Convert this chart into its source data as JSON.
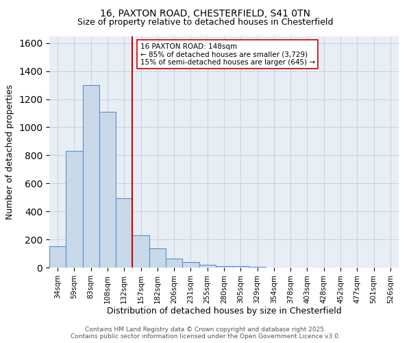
{
  "title_line1": "16, PAXTON ROAD, CHESTERFIELD, S41 0TN",
  "title_line2": "Size of property relative to detached houses in Chesterfield",
  "xlabel": "Distribution of detached houses by size in Chesterfield",
  "ylabel": "Number of detached properties",
  "bar_values": [
    150,
    830,
    1300,
    1110,
    495,
    230,
    135,
    65,
    40,
    22,
    12,
    8,
    5,
    2,
    1,
    1,
    0,
    0,
    0,
    0,
    0
  ],
  "bar_labels": [
    "34sqm",
    "59sqm",
    "83sqm",
    "108sqm",
    "132sqm",
    "157sqm",
    "182sqm",
    "206sqm",
    "231sqm",
    "255sqm",
    "280sqm",
    "305sqm",
    "329sqm",
    "354sqm",
    "378sqm",
    "403sqm",
    "428sqm",
    "452sqm",
    "477sqm",
    "501sqm",
    "526sqm"
  ],
  "bar_color": "#c9d9ea",
  "bar_edge_color": "#5b8fc9",
  "vline_x": 5.0,
  "vline_color": "#cc0000",
  "annotation_text": "16 PAXTON ROAD: 148sqm\n← 85% of detached houses are smaller (3,729)\n15% of semi-detached houses are larger (645) →",
  "annotation_box_color": "#ffffff",
  "annotation_box_edge": "#cc0000",
  "ylim": [
    0,
    1650
  ],
  "yticks": [
    0,
    200,
    400,
    600,
    800,
    1000,
    1200,
    1400,
    1600
  ],
  "grid_color": "#c8d0dc",
  "bg_color": "#e8eef5",
  "footer_line1": "Contains HM Land Registry data © Crown copyright and database right 2025.",
  "footer_line2": "Contains public sector information licensed under the Open Government Licence v3.0."
}
